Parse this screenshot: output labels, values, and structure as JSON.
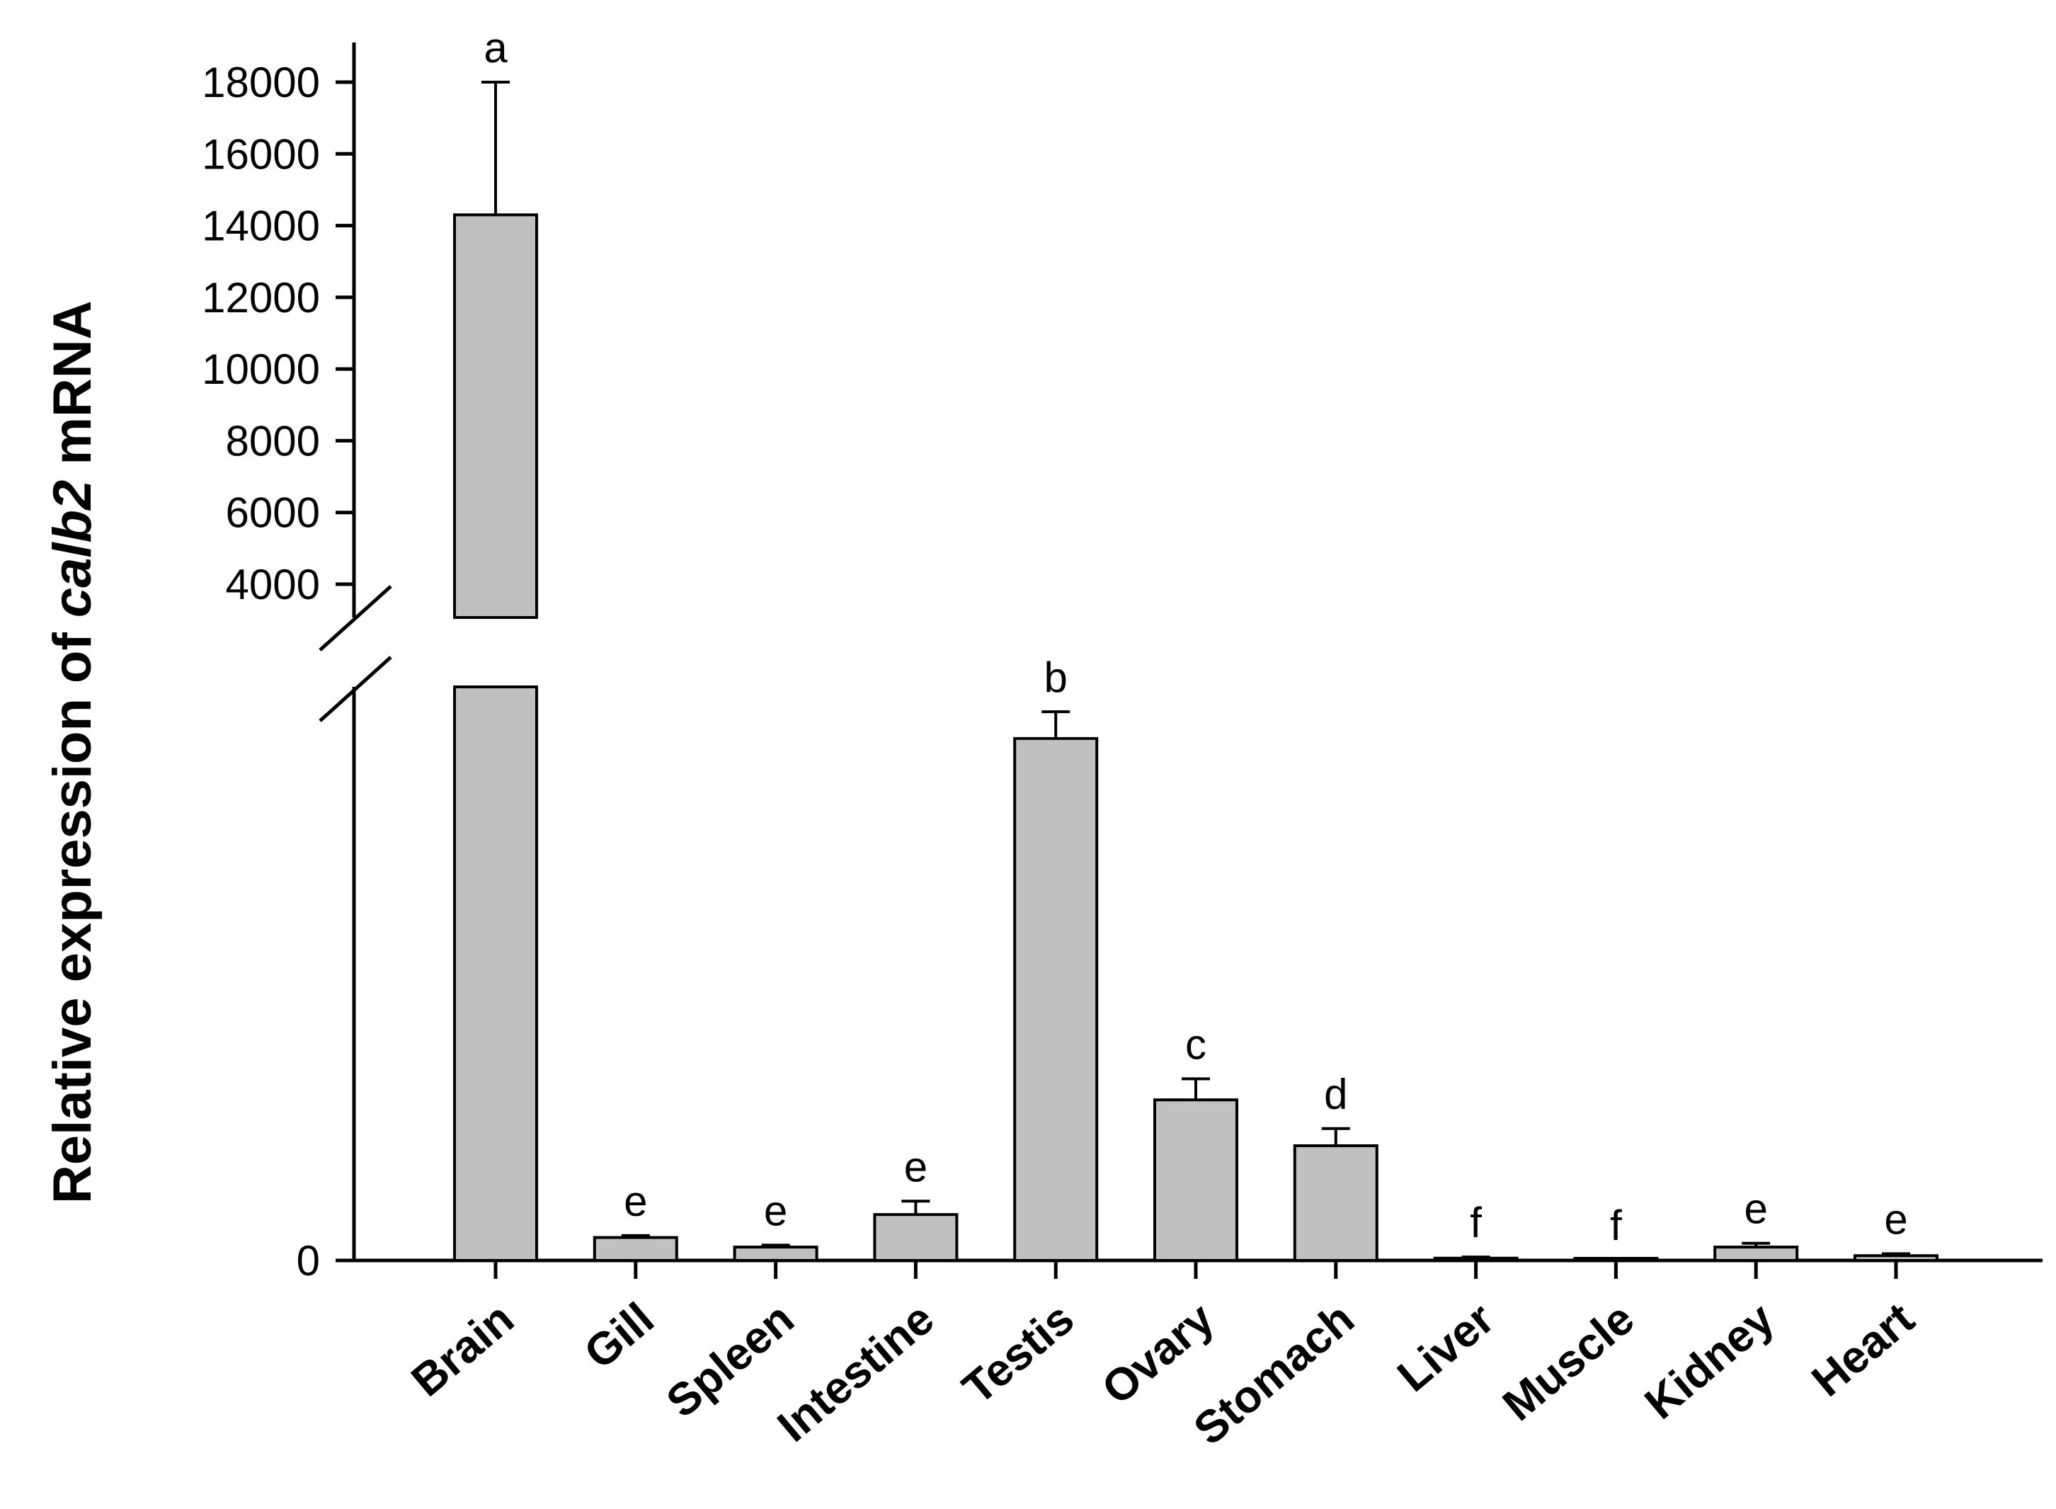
{
  "chart_data": {
    "type": "bar",
    "ylabel": {
      "prefix": "Relative expression of ",
      "gene": "calb2",
      "suffix": " mRNA"
    },
    "y_axis_break": true,
    "lower_ylim": [
      0,
      300
    ],
    "upper_ylim": [
      3000,
      18500
    ],
    "yticks_lower": [
      "0"
    ],
    "yticks_upper": [
      "4000",
      "6000",
      "8000",
      "10000",
      "12000",
      "14000",
      "16000",
      "18000"
    ],
    "yticks_upper_values": [
      4000,
      6000,
      8000,
      10000,
      12000,
      14000,
      16000,
      18000
    ],
    "categories": [
      "Brain",
      "Gill",
      "Spleen",
      "Intestine",
      "Testis",
      "Ovary",
      "Stomach",
      "Liver",
      "Muscle",
      "Kidney",
      "Heart"
    ],
    "values": [
      14300,
      12,
      7,
      24,
      273,
      84,
      60,
      1.2,
      0.2,
      7,
      2.5
    ],
    "errors": [
      3700,
      1,
      1,
      7,
      14,
      11,
      9,
      0.6,
      0.1,
      2,
      1
    ],
    "significance": [
      "a",
      "e",
      "e",
      "e",
      "b",
      "c",
      "d",
      "f",
      "f",
      "e",
      "e"
    ],
    "bar_color": "#c0c0c0",
    "grid": false,
    "legend": "none"
  }
}
